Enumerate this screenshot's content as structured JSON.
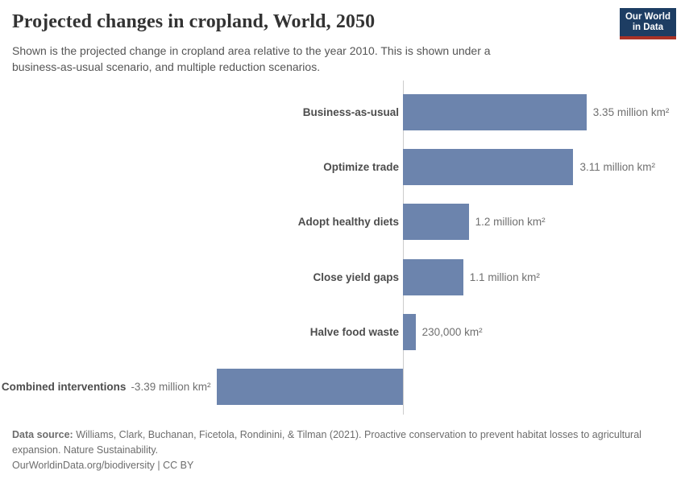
{
  "header": {
    "title": "Projected changes in cropland, World, 2050",
    "subtitle_line1": "Shown is the projected change in cropland area relative to the year 2010. This is shown under a",
    "subtitle_line2": "business-as-usual scenario, and multiple reduction scenarios.",
    "logo_line1": "Our World",
    "logo_line2": "in Data",
    "logo_bg_color": "#1d3d63",
    "logo_accent_color": "#a93226"
  },
  "chart_data": {
    "type": "bar",
    "orientation": "horizontal",
    "title": "Projected changes in cropland, World, 2050",
    "unit": "million km²",
    "categories": [
      "Business-as-usual",
      "Optimize trade",
      "Adopt healthy diets",
      "Close yield gaps",
      "Halve food waste",
      "Combined interventions"
    ],
    "values": [
      3.35,
      3.11,
      1.2,
      1.1,
      0.23,
      -3.39
    ],
    "value_labels": [
      "3.35 million km²",
      "3.11 million km²",
      "1.2 million km²",
      "1.1 million km²",
      "230,000 km²",
      "-3.39 million km²"
    ],
    "baseline": 0,
    "xlim": [
      -3.39,
      3.35
    ],
    "grid": false,
    "legend": "none",
    "bar_color": "#6c84ad",
    "axis_line_color": "#cccccc"
  },
  "footer": {
    "source_label": "Data source:",
    "source_line1": "Williams, Clark, Buchanan, Ficetola, Rondinini, & Tilman (2021). Proactive conservation to prevent habitat losses to agricultural",
    "source_line2": "expansion. Nature Sustainability.",
    "credit": "OurWorldinData.org/biodiversity | CC BY"
  }
}
